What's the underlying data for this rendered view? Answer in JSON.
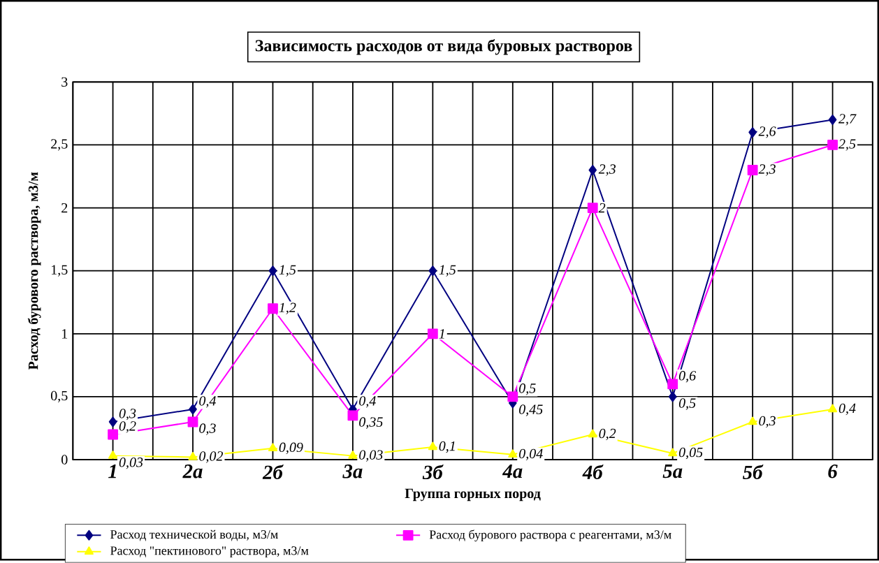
{
  "chart_data": {
    "type": "line",
    "title": "Зависимость расходов  от  вида  буровых   растворов",
    "xlabel": "Группа горных пород",
    "ylabel": "Расход бурового раствора, м3/м",
    "categories": [
      "1",
      "2а",
      "2б",
      "3а",
      "3б",
      "4а",
      "4б",
      "5а",
      "5б",
      "6"
    ],
    "series": [
      {
        "name": "Расход технической воды, м3/м",
        "color": "#000080",
        "marker": "diamond",
        "values": [
          0.3,
          0.4,
          1.5,
          0.4,
          1.5,
          0.45,
          2.3,
          0.5,
          2.6,
          2.7
        ],
        "value_labels": [
          "0,3",
          "0,4",
          "1,5",
          "0,4",
          "1,5",
          "0,45",
          "2,3",
          "0,5",
          "2,6",
          "2,7"
        ]
      },
      {
        "name": "Расход бурового раствора с реагентами, м3/м",
        "color": "#ff00ff",
        "marker": "square",
        "values": [
          0.2,
          0.3,
          1.2,
          0.35,
          1,
          0.5,
          2,
          0.6,
          2.3,
          2.5
        ],
        "value_labels": [
          "0,2",
          "0,3",
          "1,2",
          "0,35",
          "1",
          "0,5",
          "2",
          "0,6",
          "2,3",
          "2,5"
        ]
      },
      {
        "name": "Расход \"пектинового\" раствора, м3/м",
        "color": "#ffff00",
        "marker": "triangle",
        "values": [
          0.03,
          0.02,
          0.09,
          0.03,
          0.1,
          0.04,
          0.2,
          0.05,
          0.3,
          0.4
        ],
        "value_labels": [
          "0,03",
          "0,02",
          "0,09",
          "0,03",
          "0,1",
          "0,04",
          "0,2",
          "0,05",
          "0,3",
          "0,4"
        ]
      }
    ],
    "ylim": [
      0,
      3
    ],
    "yticks": [
      0,
      {
        "value": 0.5,
        "label": "0,5"
      },
      1,
      {
        "value": 1.5,
        "label": "1,5"
      },
      2,
      {
        "value": 2.5,
        "label": "2,5"
      },
      3
    ],
    "grid": true,
    "legend": "bottom"
  }
}
